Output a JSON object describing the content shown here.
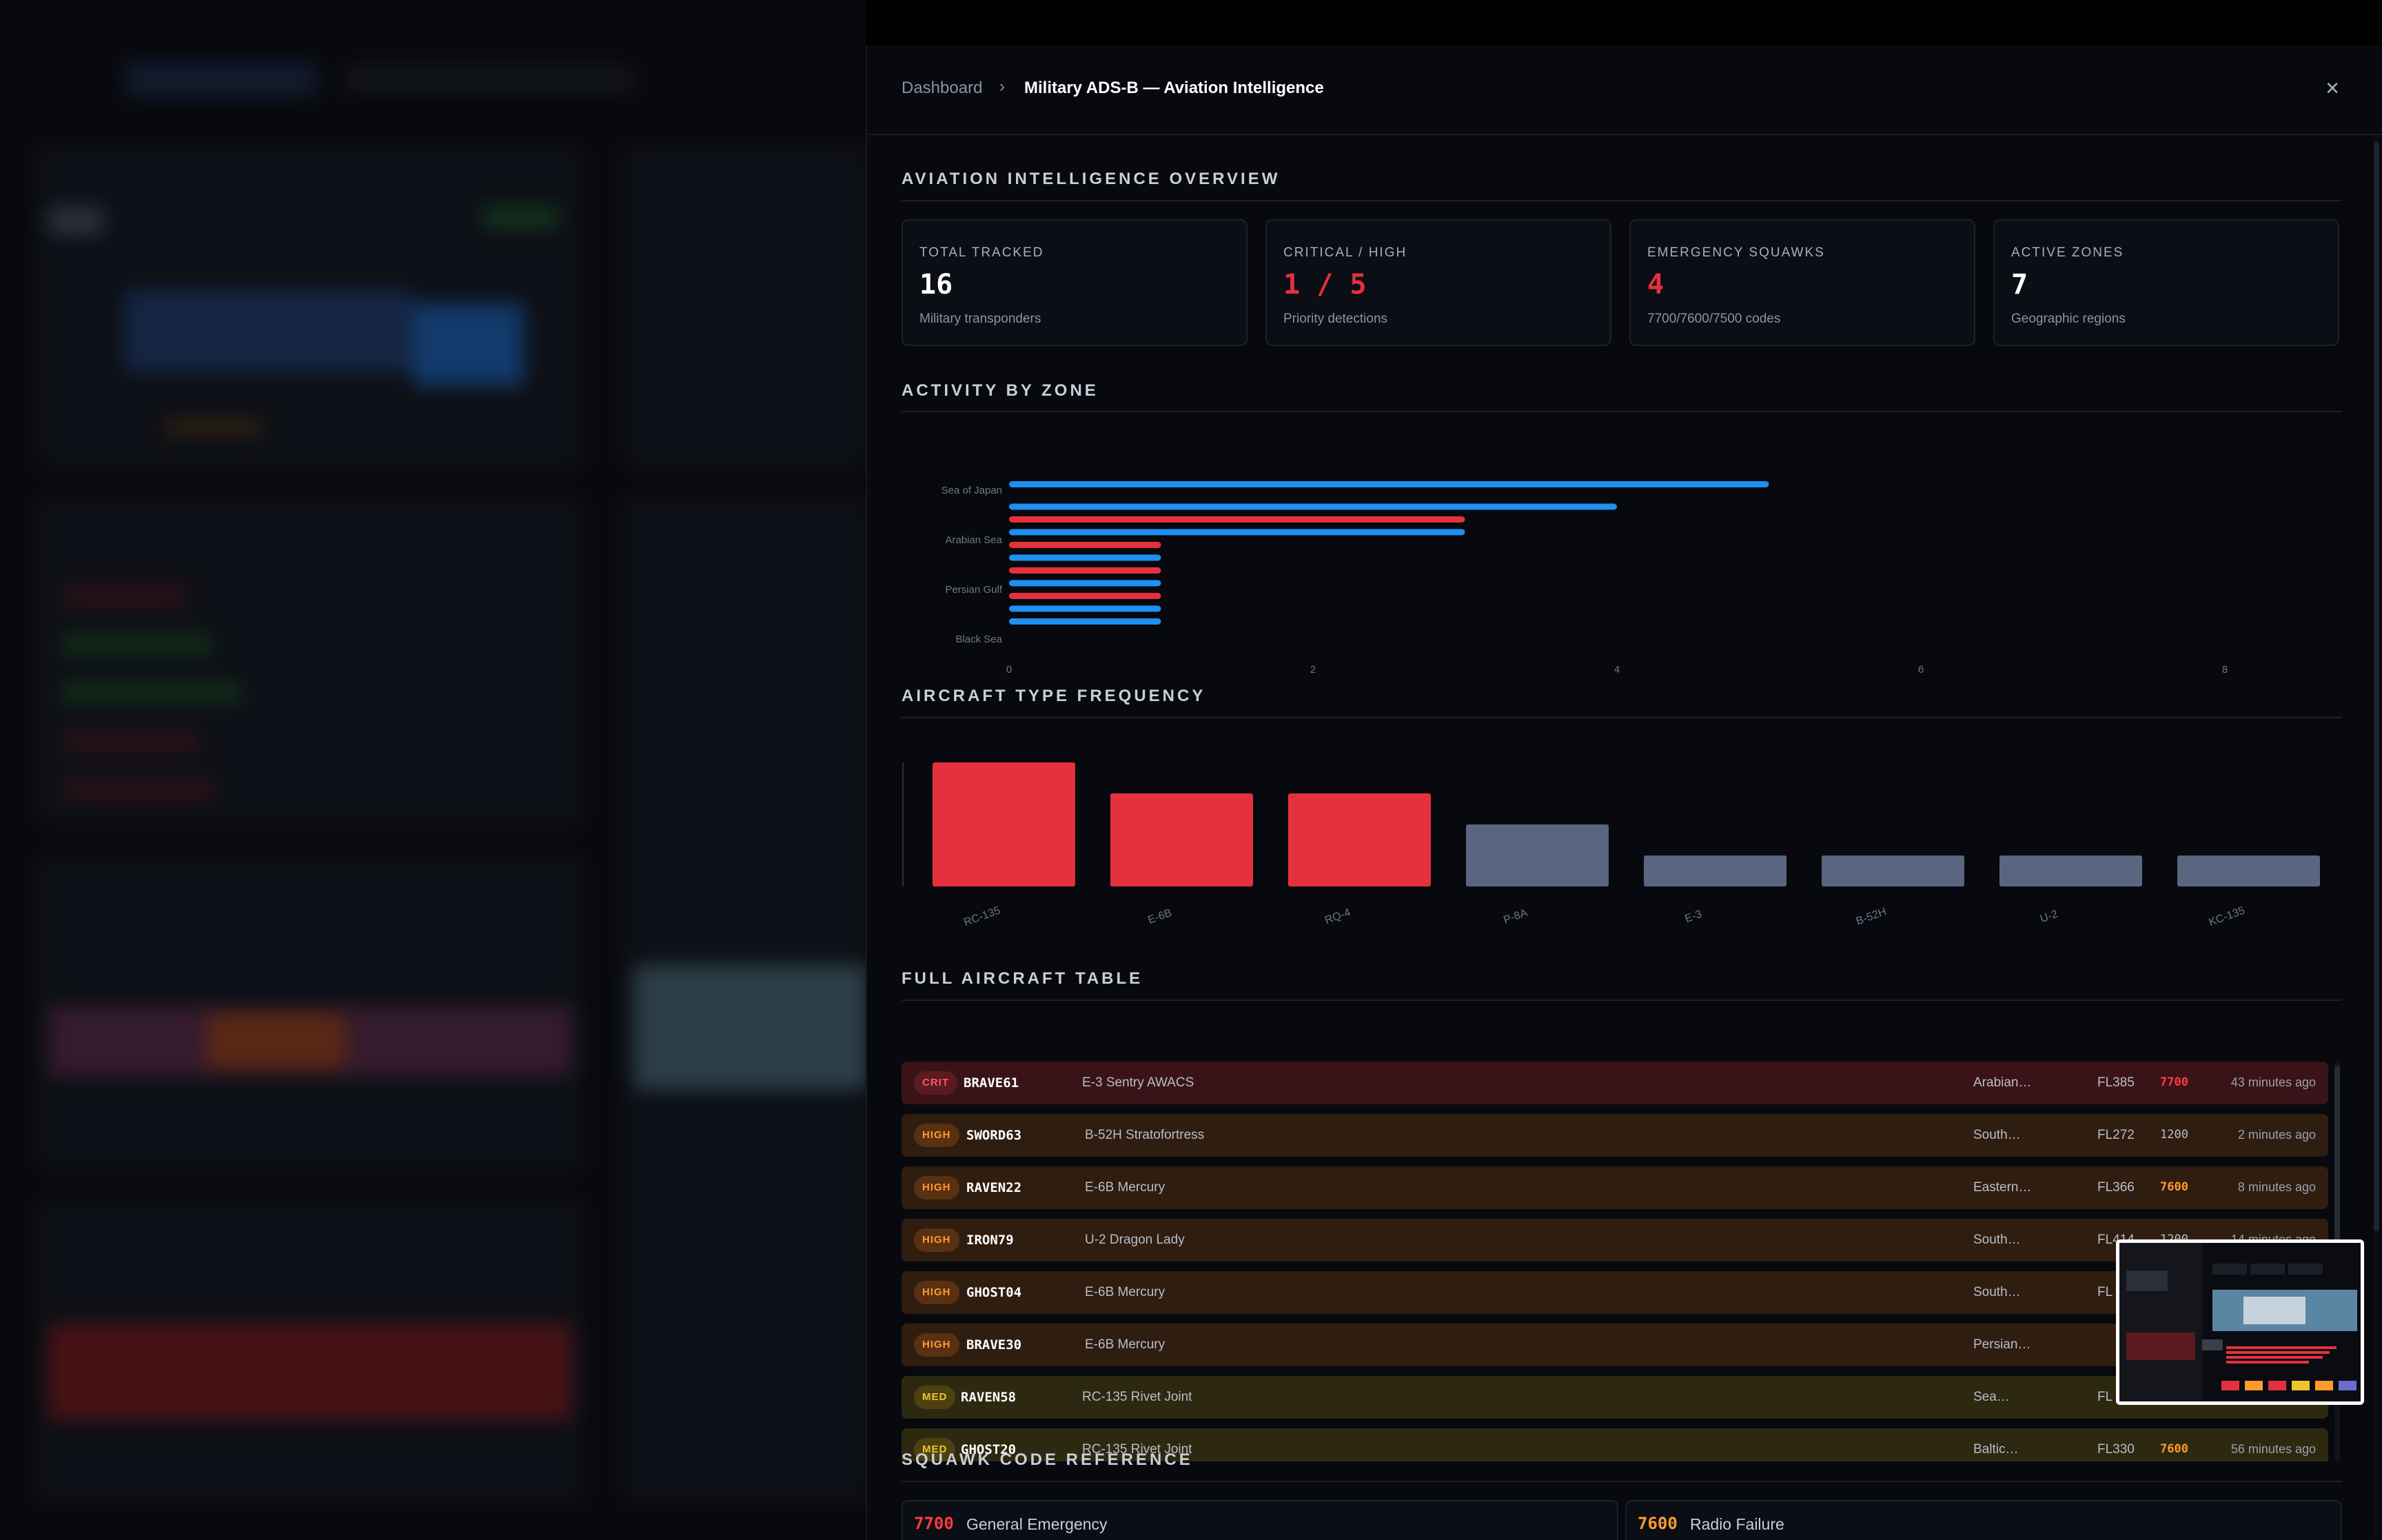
{
  "breadcrumb": {
    "home": "Dashboard",
    "separator": "›",
    "current": "Military ADS-B — Aviation Intelligence"
  },
  "close_icon": "×",
  "overview": {
    "title": "AVIATION INTELLIGENCE OVERVIEW",
    "cards": [
      {
        "label": "TOTAL TRACKED",
        "value": "16",
        "sub": "Military transponders",
        "color": "#ffffff"
      },
      {
        "label": "CRITICAL / HIGH",
        "value": "1 / 5",
        "sub": "Priority detections",
        "color": "#e5313d"
      },
      {
        "label": "EMERGENCY SQUAWKS",
        "value": "4",
        "sub": "7700/7600/7500 codes",
        "color": "#e5313d"
      },
      {
        "label": "ACTIVE ZONES",
        "value": "7",
        "sub": "Geographic regions",
        "color": "#ffffff"
      }
    ]
  },
  "zone_section": {
    "title": "ACTIVITY BY ZONE"
  },
  "type_section": {
    "title": "AIRCRAFT TYPE FREQUENCY"
  },
  "table_section": {
    "title": "FULL AIRCRAFT TABLE"
  },
  "squawk_section": {
    "title": "SQUAWK CODE REFERENCE"
  },
  "chart_data": [
    {
      "type": "bar",
      "orientation": "horizontal",
      "title": "ACTIVITY BY ZONE",
      "y_tick_labels": [
        "Sea of Japan",
        "Arabian Sea",
        "Persian Gulf",
        "Black Sea"
      ],
      "x_ticks": [
        0,
        2,
        4,
        6,
        8
      ],
      "xlim": [
        0,
        8
      ],
      "colors": {
        "blue": "#1f8ff0",
        "red": "#e5313d"
      },
      "bars": [
        {
          "value": 5,
          "color": "blue"
        },
        {
          "value": 4,
          "color": "blue"
        },
        {
          "value": 3,
          "color": "red"
        },
        {
          "value": 3,
          "color": "blue"
        },
        {
          "value": 1,
          "color": "red"
        },
        {
          "value": 1,
          "color": "blue"
        },
        {
          "value": 1,
          "color": "red"
        },
        {
          "value": 1,
          "color": "blue"
        },
        {
          "value": 1,
          "color": "red"
        },
        {
          "value": 1,
          "color": "blue"
        },
        {
          "value": 1,
          "color": "blue"
        }
      ],
      "grid": false
    },
    {
      "type": "bar",
      "title": "AIRCRAFT TYPE FREQUENCY",
      "categories": [
        "RC-135",
        "E-6B",
        "RQ-4",
        "P-8A",
        "E-3",
        "B-52H",
        "U-2",
        "KC-135"
      ],
      "values": [
        4,
        3,
        3,
        2,
        1,
        1,
        1,
        1
      ],
      "bar_colors": [
        "#e5313d",
        "#e5313d",
        "#e5313d",
        "#5a667f",
        "#5a667f",
        "#5a667f",
        "#5a667f",
        "#5a667f"
      ],
      "ylim": [
        0,
        4
      ],
      "grid": false
    }
  ],
  "aircraft": [
    {
      "level": "crit",
      "badge": "CRIT",
      "callsign": "BRAVE61",
      "type": "E-3 Sentry AWACS",
      "region": "Arabian…",
      "fl": "FL385",
      "squawk": "7700",
      "squawk_style": "red",
      "time": "43 minutes ago"
    },
    {
      "level": "high",
      "badge": "HIGH",
      "callsign": "SWORD63",
      "type": "B-52H Stratofortress",
      "region": "South…",
      "fl": "FL272",
      "squawk": "1200",
      "squawk_style": "plain",
      "time": "2 minutes ago"
    },
    {
      "level": "high",
      "badge": "HIGH",
      "callsign": "RAVEN22",
      "type": "E-6B Mercury",
      "region": "Eastern…",
      "fl": "FL366",
      "squawk": "7600",
      "squawk_style": "orange",
      "time": "8 minutes ago"
    },
    {
      "level": "high",
      "badge": "HIGH",
      "callsign": "IRON79",
      "type": "U-2 Dragon Lady",
      "region": "South…",
      "fl": "FL414",
      "squawk": "1200",
      "squawk_style": "plain",
      "time": "14 minutes ago"
    },
    {
      "level": "high",
      "badge": "HIGH",
      "callsign": "GHOST04",
      "type": "E-6B Mercury",
      "region": "South…",
      "fl": "FL",
      "squawk": "",
      "squawk_style": "plain",
      "time": ""
    },
    {
      "level": "high",
      "badge": "HIGH",
      "callsign": "BRAVE30",
      "type": "E-6B Mercury",
      "region": "Persian…",
      "fl": "",
      "squawk": "",
      "squawk_style": "plain",
      "time": ""
    },
    {
      "level": "med",
      "badge": "MED",
      "callsign": "RAVEN58",
      "type": "RC-135 Rivet Joint",
      "region": "Sea…",
      "fl": "FL",
      "squawk": "",
      "squawk_style": "plain",
      "time": ""
    },
    {
      "level": "med",
      "badge": "MED",
      "callsign": "GHOST20",
      "type": "RC-135 Rivet Joint",
      "region": "Baltic…",
      "fl": "FL330",
      "squawk": "7600",
      "squawk_style": "orange",
      "time": "56 minutes ago"
    }
  ],
  "squawk_codes": [
    {
      "code": "7700",
      "description": "General Emergency",
      "color": "#ff3a44"
    },
    {
      "code": "7600",
      "description": "Radio Failure",
      "color": "#ff9a2e"
    }
  ]
}
